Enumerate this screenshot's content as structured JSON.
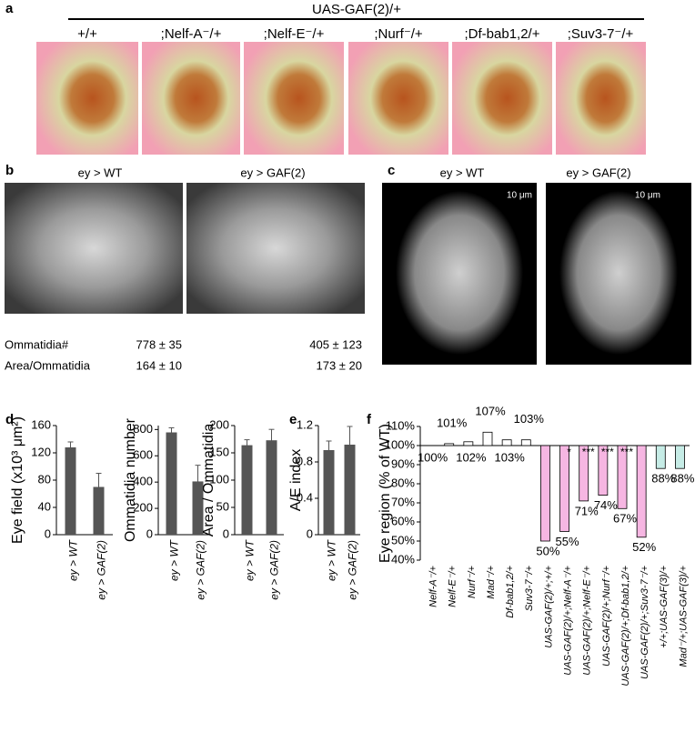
{
  "panel_labels": [
    "a",
    "b",
    "c",
    "d",
    "e",
    "f"
  ],
  "panel_a": {
    "title": "UAS-GAF(2)/+",
    "genotypes": [
      "+/+",
      ";Nelf-A⁻/+",
      ";Nelf-E⁻/+",
      ";Nurf⁻/+",
      ";Df-bab1,2/+",
      ";Suv3-7⁻/+"
    ]
  },
  "panel_b": {
    "headers": [
      "ey > WT",
      "ey > GAF(2)"
    ],
    "rows": [
      [
        "Ommatidia#",
        "778 ± 35",
        "405 ± 123"
      ],
      [
        "Area/Ommatidia",
        "164 ± 10",
        "173 ± 20"
      ]
    ]
  },
  "panel_c": {
    "headers": [
      "ey > WT",
      "ey > GAF(2)"
    ],
    "scale_bars": [
      "10 μm",
      "10 μm"
    ]
  },
  "chart_data": [
    {
      "type": "bar",
      "ylabel": "Eye field (x10³ μm²)",
      "categories": [
        "ey > WT",
        "ey > GAF(2)"
      ],
      "values": [
        128,
        70
      ],
      "errors": [
        8,
        20
      ],
      "color": "#555555",
      "ylim": [
        0,
        160
      ],
      "yticks": [
        0,
        40,
        80,
        120,
        160
      ]
    },
    {
      "type": "bar",
      "ylabel": "Ommatidia number",
      "categories": [
        "ey > WT",
        "ey > GAF(2)"
      ],
      "values": [
        778,
        405
      ],
      "errors": [
        35,
        123
      ],
      "color": "#555555",
      "ylim": [
        0,
        830
      ],
      "yticks": [
        0,
        200,
        400,
        600,
        800
      ]
    },
    {
      "type": "bar",
      "ylabel": "Area / Ommatidia",
      "categories": [
        "ey > WT",
        "ey > GAF(2)"
      ],
      "values": [
        164,
        173
      ],
      "errors": [
        10,
        20
      ],
      "color": "#555555",
      "ylim": [
        0,
        200
      ],
      "yticks": [
        0,
        50,
        100,
        150,
        200
      ]
    },
    {
      "type": "bar",
      "ylabel": "A/E index",
      "categories": [
        "ey > WT",
        "ey > GAF(2)"
      ],
      "values": [
        0.93,
        0.99
      ],
      "errors": [
        0.1,
        0.2
      ],
      "color": "#555555",
      "ylim": [
        0,
        1.2
      ],
      "yticks": [
        0,
        0.4,
        0.8,
        1.2
      ]
    },
    {
      "type": "bar",
      "ylabel": "Eye region (% of WT)",
      "baseline": 100,
      "categories": [
        "Nelf-A⁻/+",
        "Nelf-E⁻/+",
        "Nurf⁻/+",
        "Mad⁻/+",
        "Df-bab1,2/+",
        "Suv3-7⁻/+",
        "UAS-GAF(2)/+;+/+",
        "UAS-GAF(2)/+;Nelf-A⁻/+",
        "UAS-GAF(2)/+;Nelf-E⁻/+",
        "UAS-GAF(2)/+;Nurf⁻/+",
        "UAS-GAF(2)/+;Df-bab1,2/+",
        "UAS-GAF(2)/+;Suv3-7⁻/+",
        "+/+;UAS-GAF(3)/+",
        "Mad⁻/+;UAS-GAF(3)/+"
      ],
      "values": [
        100,
        101,
        102,
        107,
        103,
        103,
        50,
        55,
        71,
        74,
        67,
        52,
        88,
        88
      ],
      "value_labels": [
        "100%",
        "101%",
        "102%",
        "107%",
        "103%",
        "103%",
        "50%",
        "55%",
        "71%",
        "74%",
        "67%",
        "52%",
        "88%",
        "88%"
      ],
      "colors": [
        "#ffffff",
        "#ffffff",
        "#ffffff",
        "#ffffff",
        "#ffffff",
        "#ffffff",
        "#f6b6e2",
        "#f6b6e2",
        "#f6b6e2",
        "#f6b6e2",
        "#f6b6e2",
        "#f6b6e2",
        "#c6ece6",
        "#c6ece6"
      ],
      "significance": [
        null,
        null,
        null,
        null,
        null,
        null,
        null,
        "*",
        "***",
        "***",
        "***",
        null,
        null,
        null
      ],
      "ylim": [
        40,
        110
      ],
      "yticks": [
        {
          "value": 40,
          "label": "40%"
        },
        {
          "value": 50,
          "label": "50%"
        },
        {
          "value": 60,
          "label": "60%"
        },
        {
          "value": 70,
          "label": "70%"
        },
        {
          "value": 80,
          "label": "80%"
        },
        {
          "value": 90,
          "label": "90%"
        },
        {
          "value": 100,
          "label": "100%"
        },
        {
          "value": 110,
          "label": "110%"
        }
      ]
    }
  ]
}
